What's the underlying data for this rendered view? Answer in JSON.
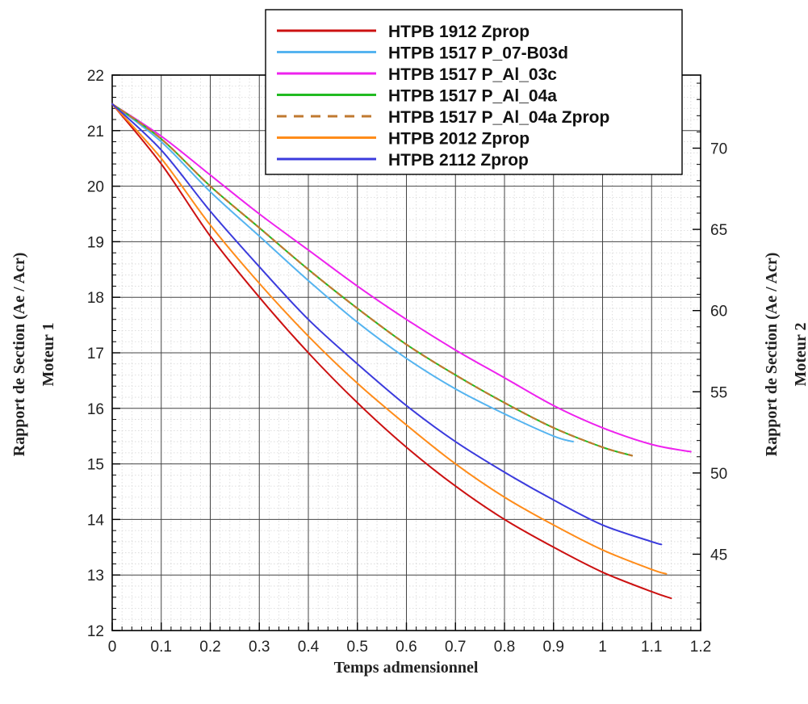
{
  "chart_data": {
    "type": "line",
    "xlabel": "Temps admensionnel",
    "ylabel_left": [
      "Rapport de Section (Ae / Acr)",
      "Moteur 1"
    ],
    "ylabel_right": [
      "Rapport de Section (Ae / Acr)",
      "Moteur 2"
    ],
    "xlim": [
      0,
      1.2
    ],
    "ylim_left": [
      12,
      22
    ],
    "ylim_right": [
      40.3,
      74.5
    ],
    "x_ticks": [
      "0",
      "0.1",
      "0.2",
      "0.3",
      "0.4",
      "0.5",
      "0.6",
      "0.7",
      "0.8",
      "0.9",
      "1",
      "1.1",
      "1.2"
    ],
    "y_ticks_left": [
      "12",
      "13",
      "14",
      "15",
      "16",
      "17",
      "18",
      "19",
      "20",
      "21",
      "22"
    ],
    "y_ticks_right": [
      "45",
      "50",
      "55",
      "60",
      "65",
      "70"
    ],
    "grid": true,
    "legend_position": "top-right",
    "series": [
      {
        "name": "HTPB 1912 Zprop",
        "color": "#cc1111",
        "dash": false,
        "x": [
          0,
          0.1,
          0.2,
          0.3,
          0.4,
          0.5,
          0.6,
          0.7,
          0.8,
          0.9,
          1.0,
          1.1,
          1.14
        ],
        "y": [
          21.48,
          20.4,
          19.1,
          18.0,
          17.0,
          16.1,
          15.3,
          14.6,
          14.0,
          13.5,
          13.05,
          12.7,
          12.58
        ]
      },
      {
        "name": "HTPB 1517 P_07-B03d",
        "color": "#55b4f0",
        "dash": false,
        "x": [
          0,
          0.1,
          0.2,
          0.3,
          0.4,
          0.5,
          0.6,
          0.7,
          0.8,
          0.9,
          0.94
        ],
        "y": [
          21.48,
          20.8,
          19.9,
          19.1,
          18.3,
          17.55,
          16.9,
          16.35,
          15.9,
          15.5,
          15.4
        ]
      },
      {
        "name": "HTPB 1517 P_Al_03c",
        "color": "#ee22ee",
        "dash": false,
        "x": [
          0,
          0.1,
          0.2,
          0.3,
          0.4,
          0.5,
          0.6,
          0.7,
          0.8,
          0.9,
          1.0,
          1.1,
          1.18
        ],
        "y": [
          21.48,
          20.9,
          20.2,
          19.5,
          18.85,
          18.2,
          17.6,
          17.05,
          16.55,
          16.05,
          15.65,
          15.35,
          15.22
        ]
      },
      {
        "name": "HTPB 1517 P_Al_04a",
        "color": "#22bb22",
        "dash": false,
        "x": [
          0,
          0.1,
          0.2,
          0.3,
          0.4,
          0.5,
          0.6,
          0.7,
          0.8,
          0.9,
          1.0,
          1.06
        ],
        "y": [
          21.48,
          20.85,
          20.0,
          19.25,
          18.5,
          17.8,
          17.15,
          16.6,
          16.1,
          15.65,
          15.3,
          15.15
        ]
      },
      {
        "name": "HTPB 1517 P_Al_04a Zprop",
        "color": "#c07a30",
        "dash": true,
        "x": [
          0,
          0.1,
          0.2,
          0.3,
          0.4,
          0.5,
          0.6,
          0.7,
          0.8,
          0.9,
          1.0,
          1.06
        ],
        "y": [
          21.48,
          20.85,
          20.0,
          19.25,
          18.5,
          17.8,
          17.15,
          16.6,
          16.1,
          15.65,
          15.3,
          15.15
        ]
      },
      {
        "name": "HTPB 2012 Zprop",
        "color": "#ff8c1a",
        "dash": false,
        "x": [
          0,
          0.1,
          0.2,
          0.3,
          0.4,
          0.5,
          0.6,
          0.7,
          0.8,
          0.9,
          1.0,
          1.1,
          1.13
        ],
        "y": [
          21.48,
          20.5,
          19.3,
          18.25,
          17.3,
          16.45,
          15.7,
          15.0,
          14.4,
          13.9,
          13.45,
          13.1,
          13.02
        ]
      },
      {
        "name": "HTPB 2112 Zprop",
        "color": "#3b3bdd",
        "dash": false,
        "x": [
          0,
          0.1,
          0.2,
          0.3,
          0.4,
          0.5,
          0.6,
          0.7,
          0.8,
          0.9,
          1.0,
          1.1,
          1.12
        ],
        "y": [
          21.48,
          20.65,
          19.55,
          18.55,
          17.6,
          16.8,
          16.05,
          15.4,
          14.85,
          14.35,
          13.9,
          13.6,
          13.55
        ]
      }
    ]
  }
}
